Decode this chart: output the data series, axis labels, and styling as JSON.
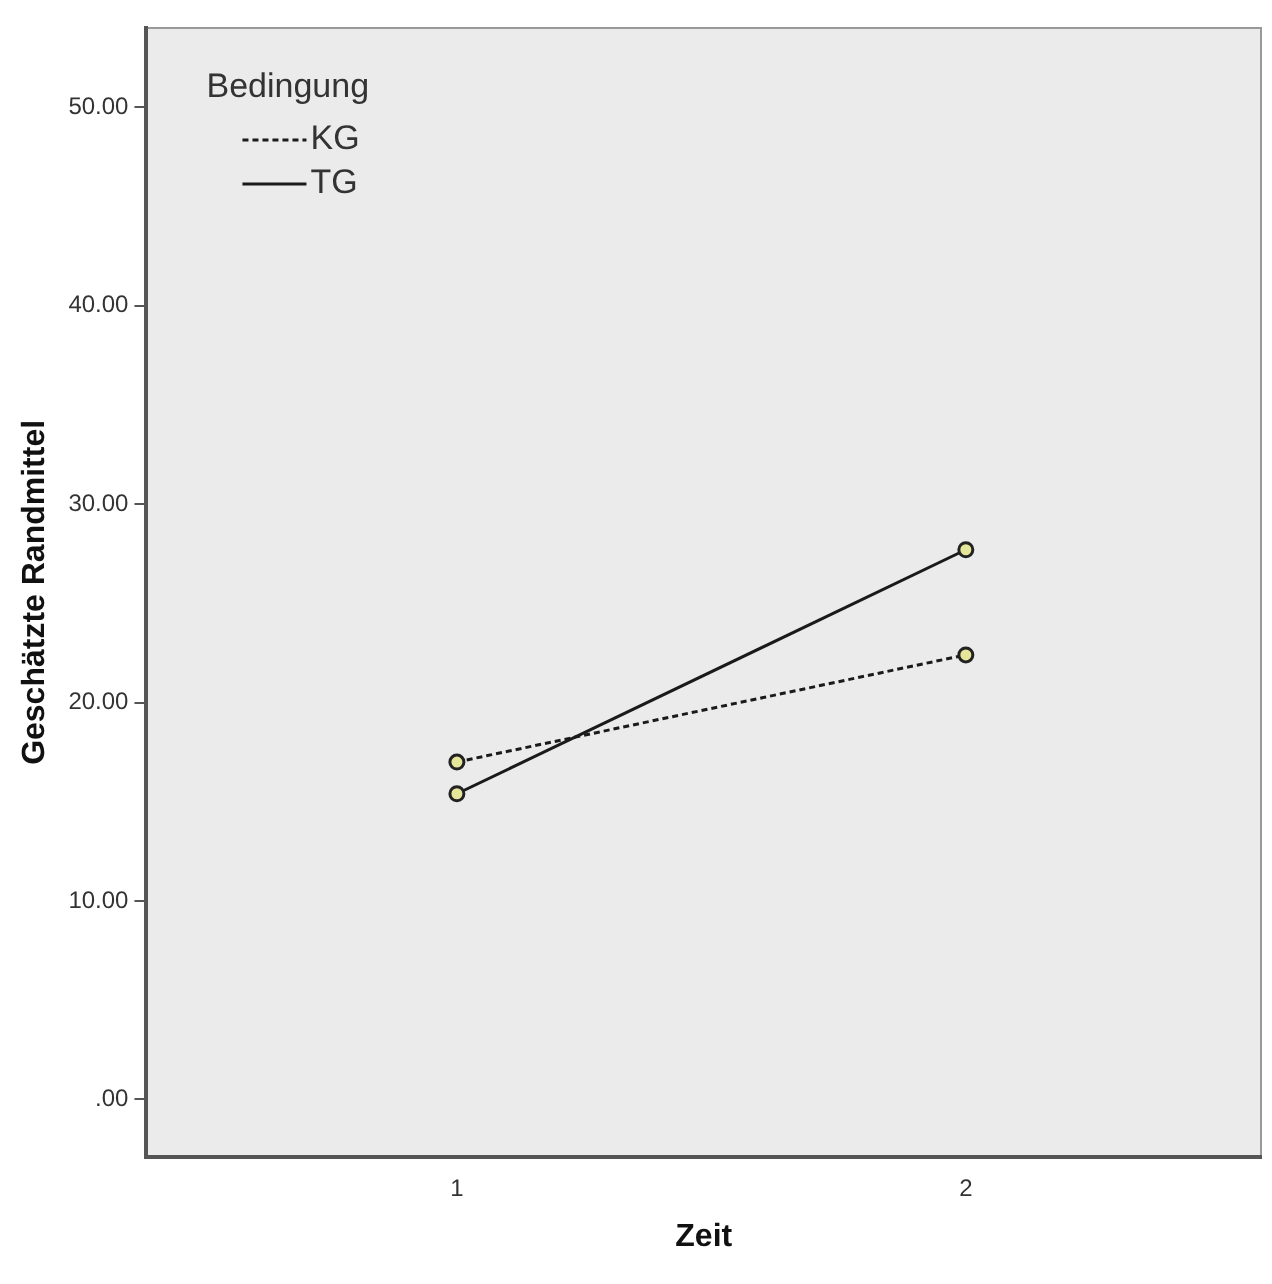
{
  "chart_data": {
    "type": "line",
    "xlabel": "Zeit",
    "ylabel": "Geschätzte Randmittel",
    "legend_title": "Bedingung",
    "legend": "top left",
    "marker": "circle",
    "grid": false,
    "x": [
      1,
      2
    ],
    "xlim": [
      0.39,
      2.58
    ],
    "xticks": [
      1,
      2
    ],
    "ylim": [
      -2.9,
      54
    ],
    "yticks": [
      {
        "value": 0,
        "label": ".00"
      },
      {
        "value": 10,
        "label": "10.00"
      },
      {
        "value": 20,
        "label": "20.00"
      },
      {
        "value": 30,
        "label": "30.00"
      },
      {
        "value": 40,
        "label": "40.00"
      },
      {
        "value": 50,
        "label": "50.00"
      }
    ],
    "series": [
      {
        "name": "KG",
        "color": "#1a1a1a",
        "line_style": "dotted",
        "values": [
          17.0,
          22.4
        ]
      },
      {
        "name": "TG",
        "color": "#1a1a1a",
        "line_style": "solid",
        "values": [
          15.4,
          27.7
        ]
      }
    ]
  }
}
